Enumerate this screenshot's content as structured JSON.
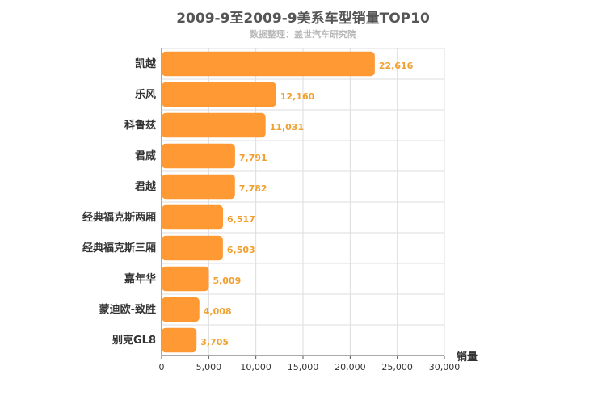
{
  "chart_data": {
    "type": "bar",
    "orientation": "horizontal",
    "title": "2009-9至2009-9美系车型销量TOP10",
    "subtitle": "数据整理：盖世汽车研究院",
    "xlabel": "销量",
    "ylabel": "",
    "categories": [
      "凯越",
      "乐风",
      "科鲁兹",
      "君威",
      "君越",
      "经典福克斯两厢",
      "经典福克斯三厢",
      "嘉年华",
      "蒙迪欧-致胜",
      "别克GL8"
    ],
    "values": [
      22616,
      12160,
      11031,
      7791,
      7782,
      6517,
      6503,
      5009,
      4008,
      3705
    ],
    "value_labels": [
      "22,616",
      "12,160",
      "11,031",
      "7,791",
      "7,782",
      "6,517",
      "6,503",
      "5,009",
      "4,008",
      "3,705"
    ],
    "xlim": [
      0,
      30000
    ],
    "xticks": [
      0,
      5000,
      10000,
      15000,
      20000,
      25000,
      30000
    ],
    "xtick_labels": [
      "0",
      "5,000",
      "10,000",
      "15,000",
      "20,000",
      "25,000",
      "30,000"
    ],
    "grid": true,
    "legend": "none",
    "bar_color": "#ff9933",
    "label_color": "#f0a030",
    "text_color": "#333333",
    "grid_color": "#dddddd"
  }
}
